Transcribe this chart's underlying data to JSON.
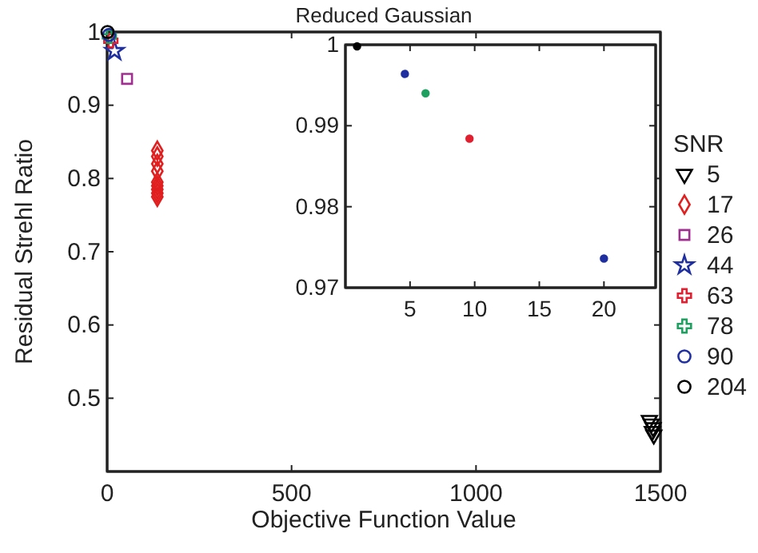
{
  "chart_data": [
    {
      "type": "scatter",
      "title": "Reduced Gaussian",
      "xlabel": "Objective Function Value",
      "ylabel": "Residual Strehl Ratio",
      "legend_title": "SNR",
      "legend": "right",
      "xlim": [
        0,
        1500
      ],
      "ylim": [
        0.4,
        1
      ],
      "xticks": [
        0,
        500,
        1000,
        1500
      ],
      "yticks": [
        0.5,
        0.6,
        0.7,
        0.8,
        0.9,
        1
      ],
      "series": [
        {
          "name": "5",
          "color": "#000000",
          "marker": "triangle",
          "x": [
            1470,
            1475,
            1480,
            1478,
            1482
          ],
          "values": [
            0.47,
            0.465,
            0.46,
            0.455,
            0.45
          ]
        },
        {
          "name": "17",
          "color": "#e02020",
          "marker": "diamond",
          "x": [
            136,
            136,
            136,
            136,
            136,
            136,
            136,
            136,
            136
          ],
          "values": [
            0.838,
            0.83,
            0.82,
            0.81,
            0.795,
            0.79,
            0.785,
            0.78,
            0.775
          ]
        },
        {
          "name": "26",
          "color": "#a0308f",
          "marker": "square",
          "x": [
            54
          ],
          "values": [
            0.936
          ]
        },
        {
          "name": "44",
          "color": "#1f2f9f",
          "marker": "star",
          "x": [
            20
          ],
          "values": [
            0.974
          ]
        },
        {
          "name": "63",
          "color": "#e02030",
          "marker": "cross",
          "x": [
            10
          ],
          "values": [
            0.988
          ]
        },
        {
          "name": "78",
          "color": "#20a060",
          "marker": "cross",
          "x": [
            6
          ],
          "values": [
            0.994
          ]
        },
        {
          "name": "90",
          "color": "#1f2f9f",
          "marker": "circle",
          "x": [
            5
          ],
          "values": [
            0.996
          ]
        },
        {
          "name": "204",
          "color": "#000000",
          "marker": "circle",
          "x": [
            1
          ],
          "values": [
            1
          ]
        }
      ]
    },
    {
      "type": "scatter",
      "xlim": [
        0,
        24
      ],
      "ylim": [
        0.97,
        1
      ],
      "xticks": [
        5,
        10,
        15,
        20
      ],
      "yticks": [
        0.97,
        0.98,
        0.99,
        1
      ],
      "marker": "circle",
      "series": [
        {
          "color": "#1f2f9f",
          "x": [
            20
          ],
          "values": [
            0.9736
          ]
        },
        {
          "color": "#e02030",
          "x": [
            9.6
          ],
          "values": [
            0.9884
          ]
        },
        {
          "color": "#20a060",
          "x": [
            6.2
          ],
          "values": [
            0.994
          ]
        },
        {
          "color": "#1f2f9f",
          "x": [
            4.6
          ],
          "values": [
            0.9964
          ]
        },
        {
          "color": "#000000",
          "x": [
            0.9
          ],
          "values": [
            0.9998
          ]
        }
      ]
    }
  ]
}
